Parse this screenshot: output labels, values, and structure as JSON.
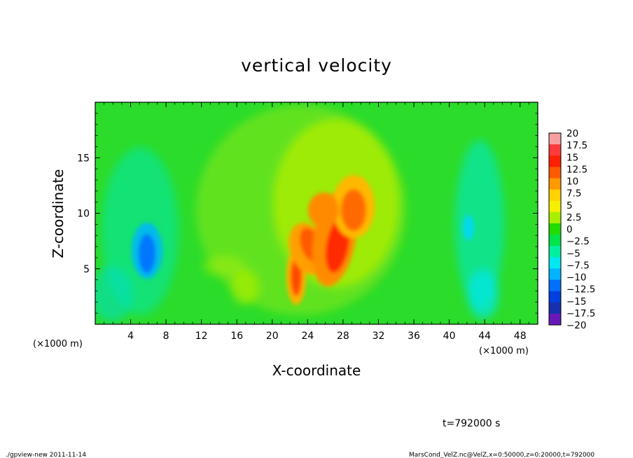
{
  "chart_data": {
    "type": "heatmap",
    "title": "vertical velocity",
    "xlabel": "X-coordinate",
    "ylabel": "Z-coordinate",
    "x_unit": "(×1000 m)",
    "y_unit": "(×1000 m)",
    "xlim": [
      0,
      50
    ],
    "ylim": [
      0,
      20
    ],
    "x_ticks": [
      4,
      8,
      12,
      16,
      20,
      24,
      28,
      32,
      36,
      40,
      44,
      48
    ],
    "y_ticks": [
      5,
      10,
      15
    ],
    "x_tick_labels": [
      "4",
      "8",
      "12",
      "16",
      "20",
      "24",
      "28",
      "32",
      "36",
      "40",
      "44",
      "48"
    ],
    "y_tick_labels": [
      "5",
      "10",
      "15"
    ],
    "colorbar": {
      "levels": [
        20,
        17.5,
        15,
        12.5,
        10,
        7.5,
        5,
        2.5,
        0,
        -2.5,
        -5,
        -7.5,
        -10,
        -12.5,
        -15,
        -17.5,
        -20
      ],
      "labels": [
        "20",
        "17.5",
        "15",
        "12.5",
        "10",
        "7.5",
        "5",
        "2.5",
        "0",
        "−2.5",
        "−5",
        "−7.5",
        "−10",
        "−12.5",
        "−15",
        "−17.5",
        "−20"
      ],
      "colors": [
        "#f5a0a0",
        "#ff3a3a",
        "#ff2000",
        "#ff5a00",
        "#ff9a00",
        "#ffd200",
        "#f3f000",
        "#a8f000",
        "#20dc00",
        "#00e44a",
        "#00f0a0",
        "#00e8f0",
        "#00b4ff",
        "#0070ff",
        "#0040e0",
        "#1830b0",
        "#6818b8"
      ]
    },
    "features": [
      {
        "kind": "updraft",
        "x": 22.8,
        "z": 4.2,
        "peak": 12.5
      },
      {
        "kind": "updraft",
        "x": 25.2,
        "z": 7.2,
        "peak": 12.5
      },
      {
        "kind": "updraft",
        "x": 27.6,
        "z": 7.0,
        "peak": 15
      },
      {
        "kind": "updraft",
        "x": 29.8,
        "z": 11.0,
        "peak": 10
      },
      {
        "kind": "downdraft",
        "x": 5.8,
        "z": 6.5,
        "peak": -10
      },
      {
        "kind": "downdraft",
        "x": 42.0,
        "z": 9.0,
        "peak": -5
      },
      {
        "kind": "downdraft",
        "x": 43.5,
        "z": 3.0,
        "peak": -5
      }
    ],
    "annotation": "t=792000 s"
  },
  "footer": {
    "left": "./gpview-new   2011-11-14",
    "right": "MarsCond_VelZ.nc@VelZ,x=0:50000,z=0:20000,t=792000"
  }
}
